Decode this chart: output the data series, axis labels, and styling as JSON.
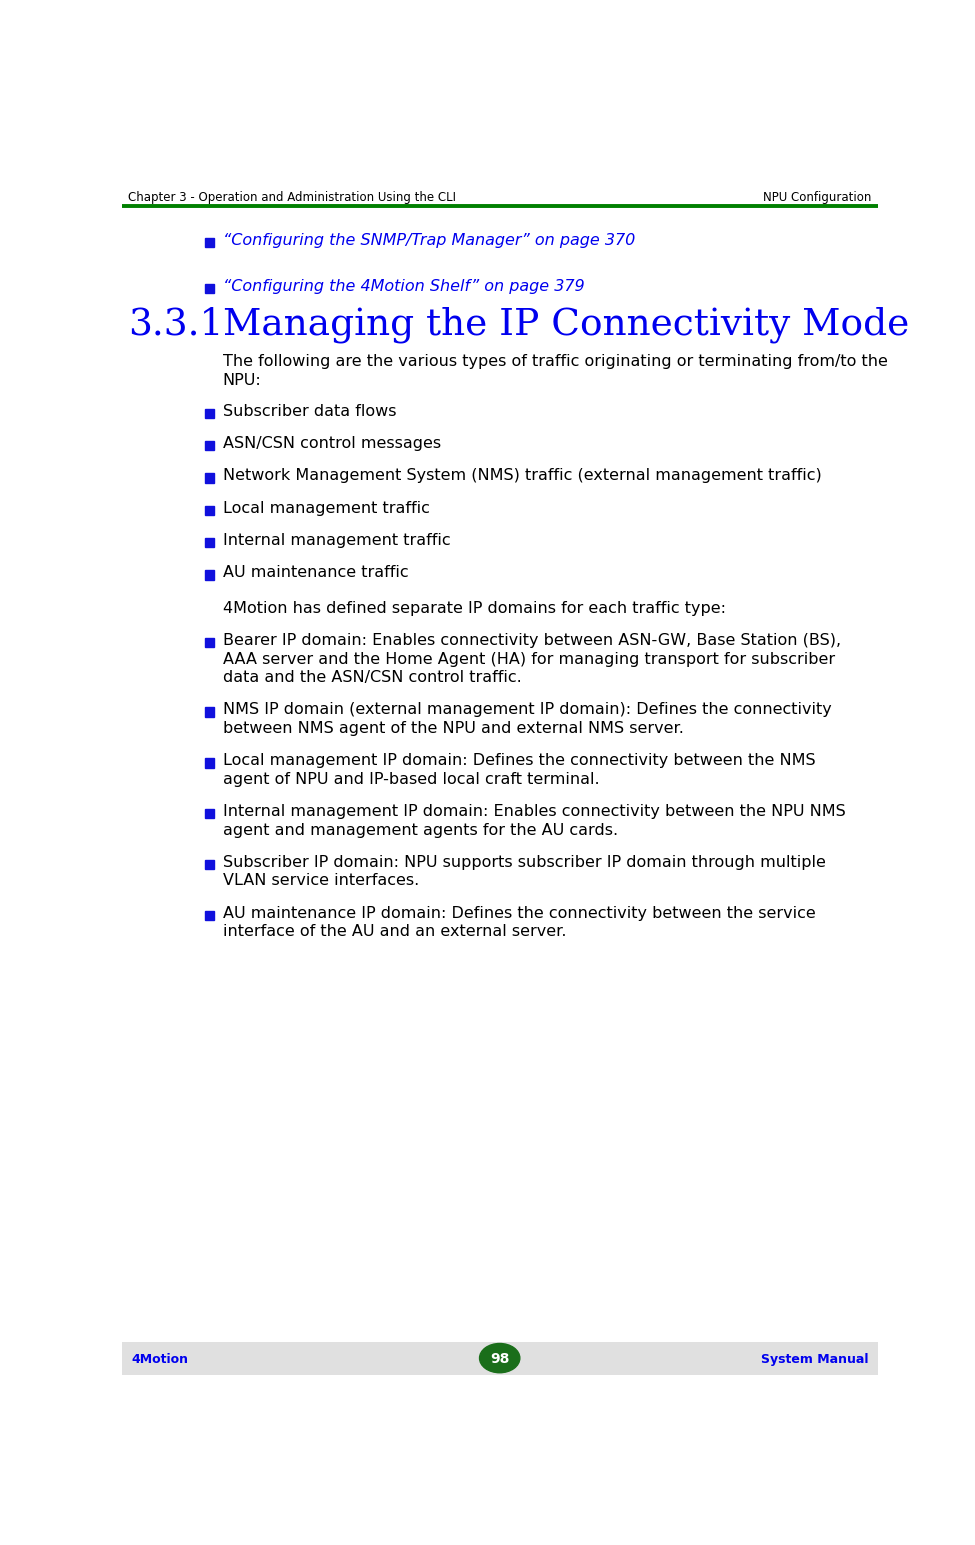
{
  "header_left": "Chapter 3 - Operation and Administration Using the CLI",
  "header_right": "NPU Configuration",
  "header_line_color": "#008000",
  "header_text_color": "#000000",
  "footer_left": "4Motion",
  "footer_right": "System Manual",
  "footer_text_color": "#0000EE",
  "footer_page_num": "98",
  "footer_page_color": "#1a6e1a",
  "footer_bg_color": "#E0E0E0",
  "bg_color": "#FFFFFF",
  "link_color": "#0000EE",
  "body_text_color": "#000000",
  "bullet_color": "#1010DD",
  "section_title_color": "#0000EE",
  "bullet_items_top": [
    "“Configuring the SNMP/Trap Manager” on page 370",
    "“Configuring the 4Motion Shelf” on page 379"
  ],
  "section_number": "3.3.1",
  "section_title": "Managing the IP Connectivity Mode",
  "intro_text_line1": "The following are the various types of traffic originating or terminating from/to the",
  "intro_text_line2": "NPU:",
  "bullet_items_mid": [
    "Subscriber data flows",
    "ASN/CSN control messages",
    "Network Management System (NMS) traffic (external management traffic)",
    "Local management traffic",
    "Internal management traffic",
    "AU maintenance traffic"
  ],
  "domain_intro": "4Motion has defined separate IP domains for each traffic type:",
  "bullet_items_bottom": [
    [
      "Bearer IP domain: Enables connectivity between ASN-GW, Base Station (BS),",
      "AAA server and the Home Agent (HA) for managing transport for subscriber",
      "data and the ASN/CSN control traffic."
    ],
    [
      "NMS IP domain (external management IP domain): Defines the connectivity",
      "between NMS agent of the NPU and external NMS server."
    ],
    [
      "Local management IP domain: Defines the connectivity between the NMS",
      "agent of NPU and IP-based local craft terminal."
    ],
    [
      "Internal management IP domain: Enables connectivity between the NPU NMS",
      "agent and management agents for the AU cards."
    ],
    [
      "Subscriber IP domain: NPU supports subscriber IP domain through multiple",
      "VLAN service interfaces."
    ],
    [
      "AU maintenance IP domain: Defines the connectivity between the service",
      "interface of the AU and an external server."
    ]
  ]
}
